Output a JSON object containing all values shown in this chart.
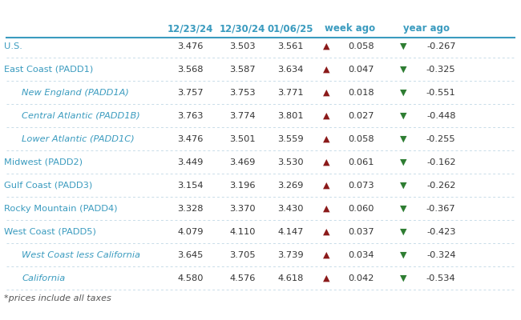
{
  "title": "",
  "footnote": "*prices include all taxes",
  "columns": [
    "12/23/24",
    "12/30/24",
    "01/06/25",
    "week ago",
    "year ago"
  ],
  "rows": [
    {
      "label": "U.S.",
      "indent": false,
      "v1": "3.476",
      "v2": "3.503",
      "v3": "3.561",
      "week_val": "0.058",
      "week_up": true,
      "year_val": "-0.267",
      "year_up": false
    },
    {
      "label": "East Coast (PADD1)",
      "indent": false,
      "v1": "3.568",
      "v2": "3.587",
      "v3": "3.634",
      "week_val": "0.047",
      "week_up": true,
      "year_val": "-0.325",
      "year_up": false
    },
    {
      "label": "New England (PADD1A)",
      "indent": true,
      "v1": "3.757",
      "v2": "3.753",
      "v3": "3.771",
      "week_val": "0.018",
      "week_up": true,
      "year_val": "-0.551",
      "year_up": false
    },
    {
      "label": "Central Atlantic (PADD1B)",
      "indent": true,
      "v1": "3.763",
      "v2": "3.774",
      "v3": "3.801",
      "week_val": "0.027",
      "week_up": true,
      "year_val": "-0.448",
      "year_up": false
    },
    {
      "label": "Lower Atlantic (PADD1C)",
      "indent": true,
      "v1": "3.476",
      "v2": "3.501",
      "v3": "3.559",
      "week_val": "0.058",
      "week_up": true,
      "year_val": "-0.255",
      "year_up": false
    },
    {
      "label": "Midwest (PADD2)",
      "indent": false,
      "v1": "3.449",
      "v2": "3.469",
      "v3": "3.530",
      "week_val": "0.061",
      "week_up": true,
      "year_val": "-0.162",
      "year_up": false
    },
    {
      "label": "Gulf Coast (PADD3)",
      "indent": false,
      "v1": "3.154",
      "v2": "3.196",
      "v3": "3.269",
      "week_val": "0.073",
      "week_up": true,
      "year_val": "-0.262",
      "year_up": false
    },
    {
      "label": "Rocky Mountain (PADD4)",
      "indent": false,
      "v1": "3.328",
      "v2": "3.370",
      "v3": "3.430",
      "week_val": "0.060",
      "week_up": true,
      "year_val": "-0.367",
      "year_up": false
    },
    {
      "label": "West Coast (PADD5)",
      "indent": false,
      "v1": "4.079",
      "v2": "4.110",
      "v3": "4.147",
      "week_val": "0.037",
      "week_up": true,
      "year_val": "-0.423",
      "year_up": false
    },
    {
      "label": "West Coast less California",
      "indent": true,
      "v1": "3.645",
      "v2": "3.705",
      "v3": "3.739",
      "week_val": "0.034",
      "week_up": true,
      "year_val": "-0.324",
      "year_up": false
    },
    {
      "label": "California",
      "indent": true,
      "v1": "4.580",
      "v2": "4.576",
      "v3": "4.618",
      "week_val": "0.042",
      "week_up": true,
      "year_val": "-0.534",
      "year_up": false
    }
  ],
  "header_color": "#3a9bbf",
  "label_color_main": "#3a9bbf",
  "label_color_indent": "#3a9bbf",
  "up_arrow_color": "#8b1a1a",
  "down_arrow_color": "#2e7d32",
  "divider_color": "#c8dce8",
  "header_divider_color": "#3a9bbf",
  "bg_color": "#ffffff",
  "text_color_data": "#333333",
  "footnote_color": "#555555"
}
